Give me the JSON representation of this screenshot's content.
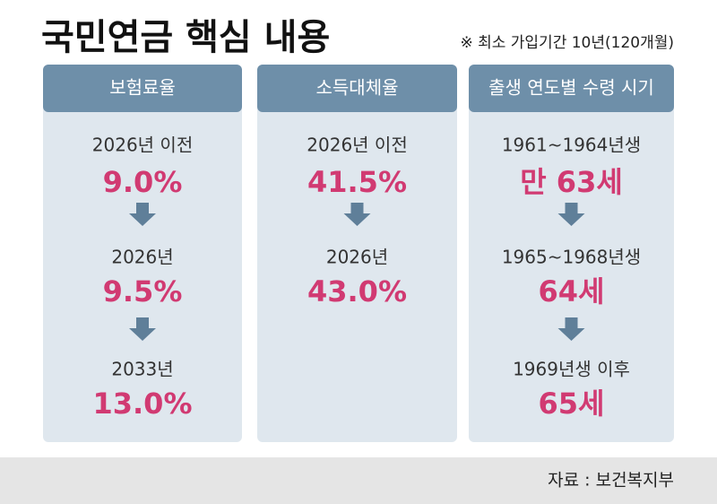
{
  "header": {
    "title": "국민연금 핵심 내용",
    "note": "※ 최소 가입기간 10년(120개월)"
  },
  "columns": [
    {
      "heading": "보험료율",
      "items": [
        {
          "label": "2026년 이전",
          "value": "9.0%"
        },
        {
          "label": "2026년",
          "value": "9.5%"
        },
        {
          "label": "2033년",
          "value": "13.0%"
        }
      ]
    },
    {
      "heading": "소득대체율",
      "items": [
        {
          "label": "2026년 이전",
          "value": "41.5%"
        },
        {
          "label": "2026년",
          "value": "43.0%"
        }
      ]
    },
    {
      "heading": "출생 연도별 수령 시기",
      "items": [
        {
          "label": "1961~1964년생",
          "value": "만 63세"
        },
        {
          "label": "1965~1968년생",
          "value": "64세"
        },
        {
          "label": "1969년생 이후",
          "value": "65세"
        }
      ]
    }
  ],
  "footer": {
    "source": "자료 : 보건복지부"
  }
}
